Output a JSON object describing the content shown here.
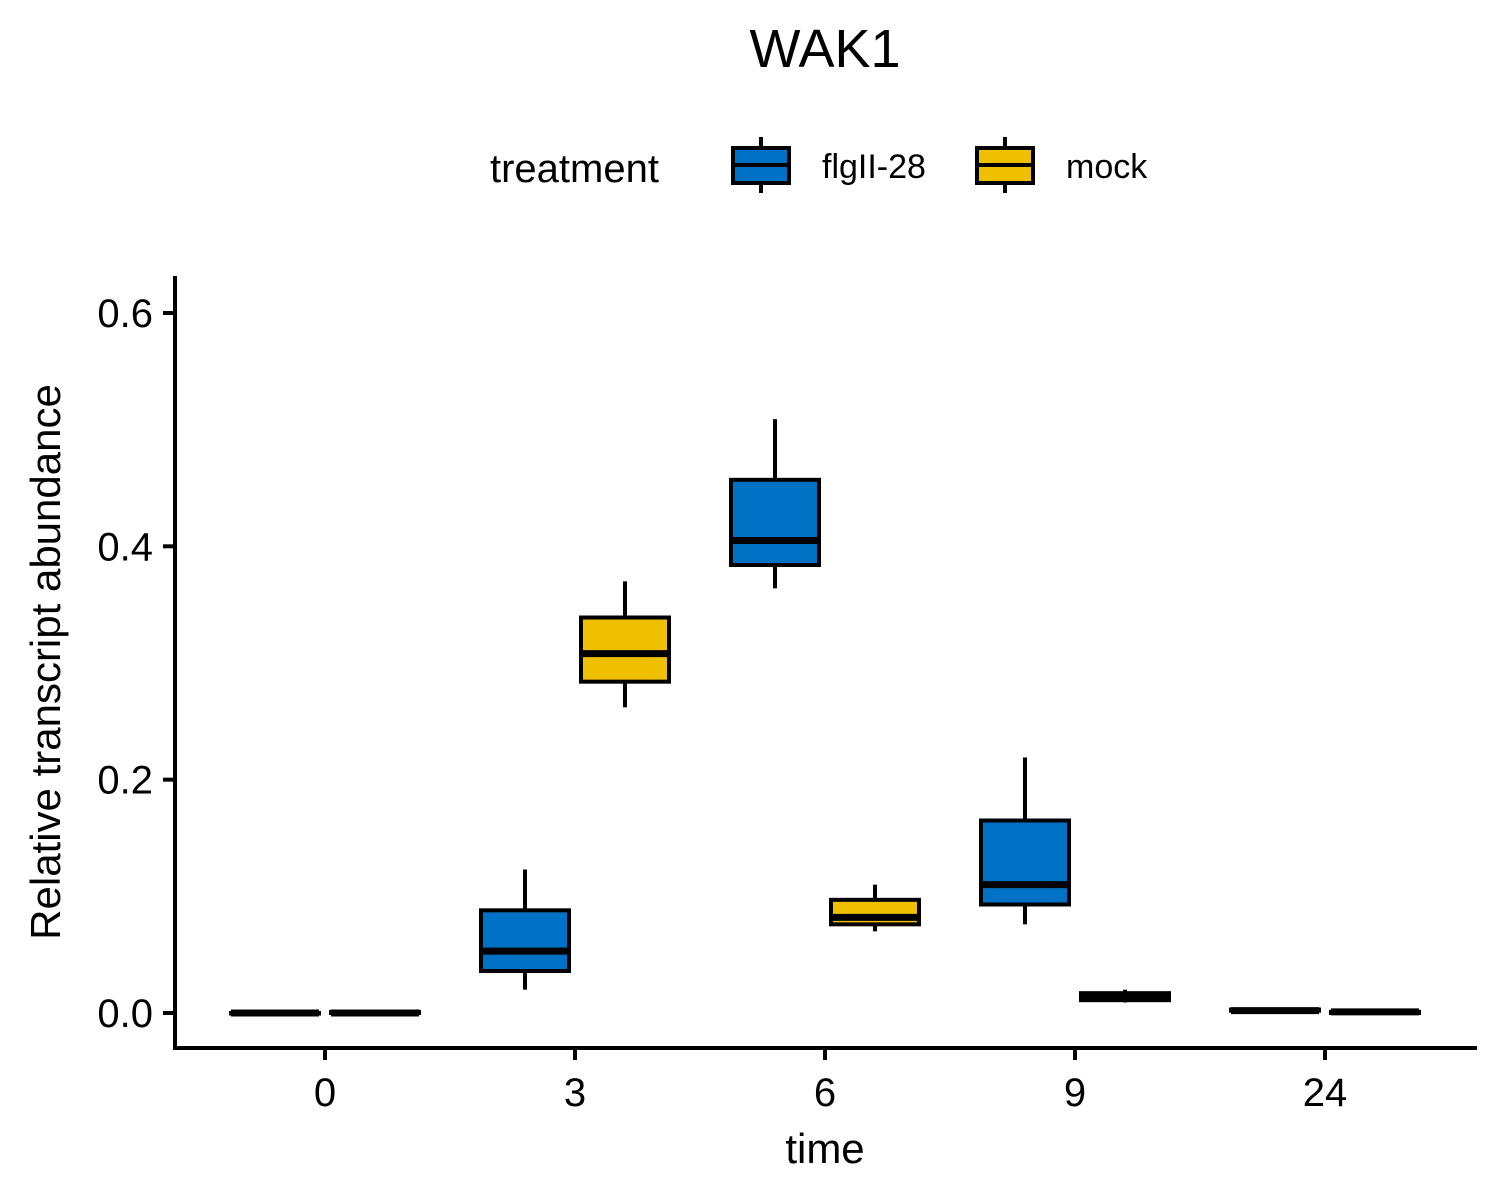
{
  "chart_data": {
    "type": "boxplot",
    "title": "WAK1",
    "xlabel": "time",
    "ylabel": "Relative transcript abundance",
    "ylim": [
      -0.03,
      0.63
    ],
    "yticks": [
      "0.0",
      "0.2",
      "0.4",
      "0.6"
    ],
    "ytick_values": [
      0.0,
      0.2,
      0.4,
      0.6
    ],
    "categories": [
      "0",
      "3",
      "6",
      "9",
      "24"
    ],
    "legend": {
      "title": "treatment",
      "position": "top"
    },
    "grid": false,
    "series": [
      {
        "name": "flgII-28",
        "color": "#0072C6",
        "boxes": [
          {
            "min": 0.0,
            "q1": 0.0,
            "median": 0.0,
            "q3": 0.0,
            "max": 0.0
          },
          {
            "min": 0.02,
            "q1": 0.036,
            "median": 0.053,
            "q3": 0.088,
            "max": 0.123
          },
          {
            "min": 0.364,
            "q1": 0.384,
            "median": 0.405,
            "q3": 0.457,
            "max": 0.509
          },
          {
            "min": 0.076,
            "q1": 0.093,
            "median": 0.11,
            "q3": 0.165,
            "max": 0.219
          },
          {
            "min": 0.002,
            "q1": 0.002,
            "median": 0.002,
            "q3": 0.003,
            "max": 0.003
          }
        ]
      },
      {
        "name": "mock",
        "color": "#EFC000",
        "boxes": [
          {
            "min": 0.0,
            "q1": 0.0,
            "median": 0.0,
            "q3": 0.001,
            "max": 0.001
          },
          {
            "min": 0.262,
            "q1": 0.284,
            "median": 0.308,
            "q3": 0.339,
            "max": 0.37
          },
          {
            "min": 0.07,
            "q1": 0.076,
            "median": 0.082,
            "q3": 0.097,
            "max": 0.11
          },
          {
            "min": 0.009,
            "q1": 0.011,
            "median": 0.014,
            "q3": 0.017,
            "max": 0.02
          },
          {
            "min": 0.0,
            "q1": 0.0,
            "median": 0.001,
            "q3": 0.001,
            "max": 0.001
          }
        ]
      }
    ]
  }
}
